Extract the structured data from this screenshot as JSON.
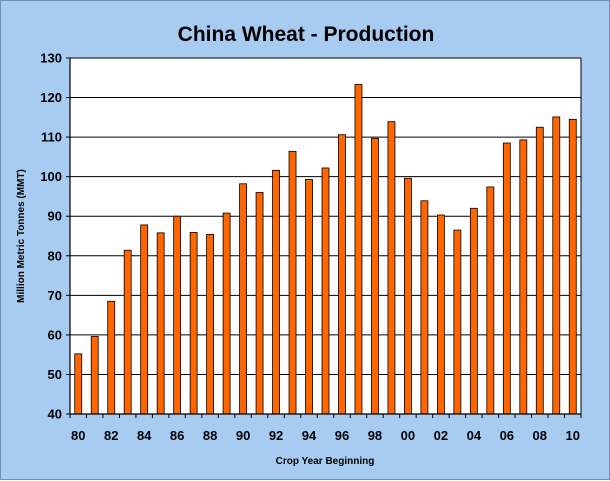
{
  "chart_data": {
    "type": "bar",
    "title": "China Wheat - Production",
    "xlabel": "Crop Year Beginning",
    "ylabel": "Million Metric Tonnes (MMT)",
    "ylim": [
      40,
      130
    ],
    "yticks": [
      40,
      50,
      60,
      70,
      80,
      90,
      100,
      110,
      120,
      130
    ],
    "grid": true,
    "colors": {
      "bar_fill": "#ff6600",
      "bar_stroke": "#000000",
      "frame_background": "#a7cbf1",
      "plot_background": "#ffffff"
    },
    "categories": [
      "80",
      "81",
      "82",
      "83",
      "84",
      "85",
      "86",
      "87",
      "88",
      "89",
      "90",
      "91",
      "92",
      "93",
      "94",
      "95",
      "96",
      "97",
      "98",
      "99",
      "00",
      "01",
      "02",
      "03",
      "04",
      "05",
      "06",
      "07",
      "08",
      "09",
      "10"
    ],
    "xtick_labels": [
      "80",
      "82",
      "84",
      "86",
      "88",
      "90",
      "92",
      "94",
      "96",
      "98",
      "00",
      "02",
      "04",
      "06",
      "08",
      "10"
    ],
    "values": [
      55.2,
      59.6,
      68.5,
      81.4,
      87.8,
      85.8,
      90.0,
      85.9,
      85.4,
      90.8,
      98.2,
      96.0,
      101.6,
      106.4,
      99.3,
      102.2,
      110.6,
      123.3,
      109.7,
      113.9,
      99.6,
      93.9,
      90.3,
      86.5,
      92.0,
      97.4,
      108.5,
      109.3,
      112.5,
      115.1,
      114.5
    ]
  }
}
